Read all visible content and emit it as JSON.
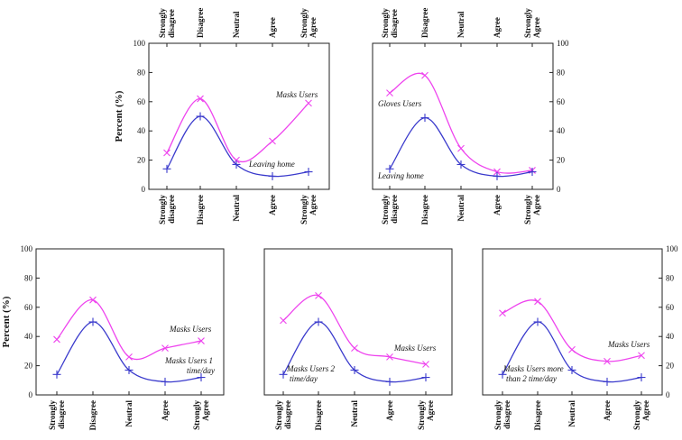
{
  "chart_data": [
    {
      "type": "line",
      "categories": [
        "Strongly disagree",
        "Disagree",
        "Neutral",
        "Agree",
        "Strongly Agree"
      ],
      "ylabel": "Percent (%)",
      "ylim": [
        0,
        100
      ],
      "yticks": [
        0,
        20,
        40,
        60,
        80,
        100
      ],
      "y_axis_side": "left",
      "top_category_labels": true,
      "series": [
        {
          "name": "Masks Users",
          "color": "#ee44ee",
          "marker": "x",
          "values": [
            25,
            62,
            20,
            33,
            59
          ]
        },
        {
          "name": "Leaving home",
          "color": "#3a3acc",
          "marker": "+",
          "values": [
            14,
            50,
            17,
            9,
            12
          ]
        }
      ]
    },
    {
      "type": "line",
      "categories": [
        "Strongly disagree",
        "Disagree",
        "Neutral",
        "Agree",
        "Strongly Agree"
      ],
      "ylabel": "",
      "ylim": [
        0,
        100
      ],
      "yticks": [
        0,
        20,
        40,
        60,
        80,
        100
      ],
      "y_axis_side": "right",
      "top_category_labels": true,
      "series": [
        {
          "name": "Gloves Users",
          "color": "#ee44ee",
          "marker": "x",
          "values": [
            66,
            78,
            28,
            12,
            13
          ]
        },
        {
          "name": "Leaving home",
          "color": "#3a3acc",
          "marker": "+",
          "values": [
            14,
            49,
            17,
            9,
            12
          ]
        }
      ]
    },
    {
      "type": "line",
      "categories": [
        "Strongly disagree",
        "Disagree",
        "Neutral",
        "Agree",
        "Strongly Agree"
      ],
      "ylabel": "Percent (%)",
      "ylim": [
        0,
        100
      ],
      "yticks": [
        0,
        20,
        40,
        60,
        80,
        100
      ],
      "y_axis_side": "left",
      "top_category_labels": false,
      "series": [
        {
          "name": "Masks Users",
          "color": "#ee44ee",
          "marker": "x",
          "values": [
            38,
            65,
            26,
            32,
            37
          ]
        },
        {
          "name": "Masks Users 1 time/day",
          "color": "#3a3acc",
          "marker": "+",
          "values": [
            14,
            50,
            17,
            9,
            12
          ]
        }
      ]
    },
    {
      "type": "line",
      "categories": [
        "Strongly disagree",
        "Disagree",
        "Neutral",
        "Agree",
        "Strongly Agree"
      ],
      "ylabel": "",
      "ylim": [
        0,
        100
      ],
      "yticks": [],
      "y_axis_side": "none",
      "top_category_labels": false,
      "series": [
        {
          "name": "Masks Users",
          "color": "#ee44ee",
          "marker": "x",
          "values": [
            51,
            68,
            32,
            26,
            21
          ]
        },
        {
          "name": "Masks Users 2 time/day",
          "color": "#3a3acc",
          "marker": "+",
          "values": [
            14,
            50,
            17,
            9,
            12
          ]
        }
      ]
    },
    {
      "type": "line",
      "categories": [
        "Strongly disagree",
        "Disagree",
        "Neutral",
        "Agree",
        "Strongly Agree"
      ],
      "ylabel": "",
      "ylim": [
        0,
        100
      ],
      "yticks": [
        0,
        20,
        40,
        60,
        80,
        100
      ],
      "y_axis_side": "right",
      "top_category_labels": false,
      "series": [
        {
          "name": "Masks Users",
          "color": "#ee44ee",
          "marker": "x",
          "values": [
            56,
            64,
            31,
            23,
            27
          ]
        },
        {
          "name": "Masks Users more than 2 time/day",
          "color": "#3a3acc",
          "marker": "+",
          "values": [
            14,
            50,
            17,
            9,
            12
          ]
        }
      ]
    }
  ]
}
